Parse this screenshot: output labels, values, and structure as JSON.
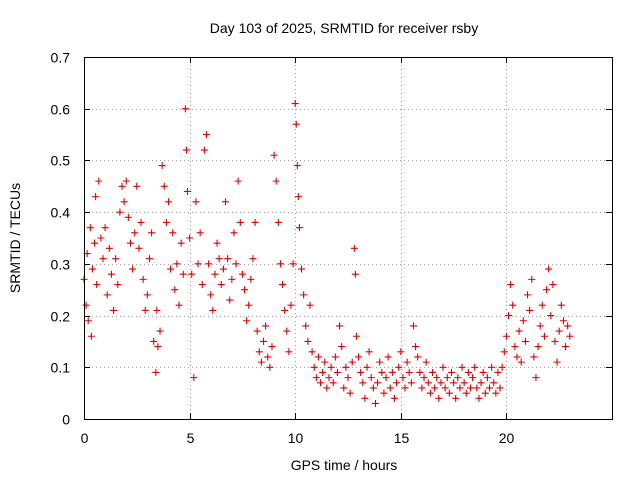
{
  "chart_data": {
    "type": "scatter",
    "title": "Day 103 of 2025, SRMTID for receiver rsby",
    "xlabel": "GPS time / hours",
    "ylabel": "SRMTID / TECUs",
    "xlim": [
      0,
      25
    ],
    "ylim": [
      0,
      0.7
    ],
    "xticks": [
      0,
      5,
      10,
      15,
      20
    ],
    "xtick_labels": [
      "0",
      "5",
      "10",
      "15",
      "20"
    ],
    "yticks": [
      0,
      0.1,
      0.2,
      0.3,
      0.4,
      0.5,
      0.6,
      0.7
    ],
    "ytick_labels": [
      "0",
      "0.1",
      "0.2",
      "0.3",
      "0.4",
      "0.5",
      "0.6",
      "0.7"
    ],
    "grid": true,
    "marker": "plus",
    "color": "#e00000",
    "series": [
      {
        "name": "SRMTID",
        "points": [
          [
            0.0,
            0.27
          ],
          [
            0.1,
            0.22
          ],
          [
            0.15,
            0.32
          ],
          [
            0.2,
            0.19
          ],
          [
            0.3,
            0.37
          ],
          [
            0.35,
            0.16
          ],
          [
            0.4,
            0.29
          ],
          [
            0.5,
            0.34
          ],
          [
            0.55,
            0.43
          ],
          [
            0.6,
            0.26
          ],
          [
            0.7,
            0.46
          ],
          [
            0.8,
            0.35
          ],
          [
            0.9,
            0.31
          ],
          [
            1.0,
            0.37
          ],
          [
            1.1,
            0.24
          ],
          [
            1.2,
            0.33
          ],
          [
            1.3,
            0.28
          ],
          [
            1.4,
            0.21
          ],
          [
            1.5,
            0.31
          ],
          [
            1.6,
            0.26
          ],
          [
            1.7,
            0.4
          ],
          [
            1.8,
            0.45
          ],
          [
            1.9,
            0.42
          ],
          [
            2.0,
            0.46
          ],
          [
            2.1,
            0.39
          ],
          [
            2.2,
            0.34
          ],
          [
            2.3,
            0.29
          ],
          [
            2.4,
            0.36
          ],
          [
            2.5,
            0.45
          ],
          [
            2.6,
            0.33
          ],
          [
            2.7,
            0.38
          ],
          [
            2.8,
            0.27
          ],
          [
            2.9,
            0.21
          ],
          [
            3.0,
            0.24
          ],
          [
            3.1,
            0.31
          ],
          [
            3.2,
            0.36
          ],
          [
            3.3,
            0.15
          ],
          [
            3.4,
            0.09
          ],
          [
            3.45,
            0.21
          ],
          [
            3.5,
            0.14
          ],
          [
            3.6,
            0.17
          ],
          [
            3.7,
            0.49
          ],
          [
            3.8,
            0.45
          ],
          [
            3.9,
            0.38
          ],
          [
            4.0,
            0.42
          ],
          [
            4.1,
            0.29
          ],
          [
            4.2,
            0.36
          ],
          [
            4.3,
            0.25
          ],
          [
            4.4,
            0.3
          ],
          [
            4.5,
            0.22
          ],
          [
            4.6,
            0.34
          ],
          [
            4.7,
            0.28
          ],
          [
            4.8,
            0.6
          ],
          [
            4.85,
            0.52
          ],
          [
            4.9,
            0.44
          ],
          [
            5.0,
            0.35
          ],
          [
            5.1,
            0.28
          ],
          [
            5.2,
            0.08
          ],
          [
            5.3,
            0.42
          ],
          [
            5.4,
            0.3
          ],
          [
            5.5,
            0.36
          ],
          [
            5.6,
            0.26
          ],
          [
            5.7,
            0.52
          ],
          [
            5.8,
            0.55
          ],
          [
            5.9,
            0.3
          ],
          [
            6.0,
            0.24
          ],
          [
            6.1,
            0.21
          ],
          [
            6.2,
            0.28
          ],
          [
            6.3,
            0.34
          ],
          [
            6.4,
            0.31
          ],
          [
            6.5,
            0.26
          ],
          [
            6.6,
            0.29
          ],
          [
            6.7,
            0.42
          ],
          [
            6.8,
            0.31
          ],
          [
            6.9,
            0.23
          ],
          [
            7.0,
            0.27
          ],
          [
            7.1,
            0.36
          ],
          [
            7.2,
            0.3
          ],
          [
            7.3,
            0.46
          ],
          [
            7.4,
            0.38
          ],
          [
            7.5,
            0.28
          ],
          [
            7.6,
            0.25
          ],
          [
            7.7,
            0.19
          ],
          [
            7.8,
            0.22
          ],
          [
            7.9,
            0.27
          ],
          [
            8.0,
            0.31
          ],
          [
            8.1,
            0.38
          ],
          [
            8.2,
            0.17
          ],
          [
            8.3,
            0.13
          ],
          [
            8.4,
            0.11
          ],
          [
            8.5,
            0.15
          ],
          [
            8.6,
            0.18
          ],
          [
            8.7,
            0.12
          ],
          [
            8.8,
            0.1
          ],
          [
            8.9,
            0.14
          ],
          [
            9.0,
            0.51
          ],
          [
            9.1,
            0.46
          ],
          [
            9.2,
            0.38
          ],
          [
            9.3,
            0.3
          ],
          [
            9.4,
            0.26
          ],
          [
            9.5,
            0.21
          ],
          [
            9.6,
            0.17
          ],
          [
            9.7,
            0.13
          ],
          [
            9.8,
            0.22
          ],
          [
            9.9,
            0.3
          ],
          [
            10.0,
            0.61
          ],
          [
            10.05,
            0.57
          ],
          [
            10.1,
            0.49
          ],
          [
            10.15,
            0.43
          ],
          [
            10.2,
            0.37
          ],
          [
            10.3,
            0.29
          ],
          [
            10.4,
            0.24
          ],
          [
            10.5,
            0.18
          ],
          [
            10.6,
            0.15
          ],
          [
            10.7,
            0.22
          ],
          [
            10.8,
            0.13
          ],
          [
            10.9,
            0.1
          ],
          [
            11.0,
            0.08
          ],
          [
            11.1,
            0.12
          ],
          [
            11.2,
            0.07
          ],
          [
            11.3,
            0.09
          ],
          [
            11.4,
            0.11
          ],
          [
            11.5,
            0.06
          ],
          [
            11.6,
            0.08
          ],
          [
            11.7,
            0.1
          ],
          [
            11.8,
            0.07
          ],
          [
            11.9,
            0.12
          ],
          [
            12.0,
            0.09
          ],
          [
            12.1,
            0.18
          ],
          [
            12.2,
            0.14
          ],
          [
            12.3,
            0.06
          ],
          [
            12.4,
            0.1
          ],
          [
            12.5,
            0.08
          ],
          [
            12.6,
            0.05
          ],
          [
            12.7,
            0.11
          ],
          [
            12.8,
            0.33
          ],
          [
            12.85,
            0.28
          ],
          [
            12.9,
            0.16
          ],
          [
            13.0,
            0.12
          ],
          [
            13.1,
            0.09
          ],
          [
            13.2,
            0.07
          ],
          [
            13.3,
            0.04
          ],
          [
            13.4,
            0.1
          ],
          [
            13.5,
            0.13
          ],
          [
            13.6,
            0.08
          ],
          [
            13.7,
            0.06
          ],
          [
            13.8,
            0.03
          ],
          [
            13.9,
            0.07
          ],
          [
            14.0,
            0.11
          ],
          [
            14.1,
            0.09
          ],
          [
            14.2,
            0.05
          ],
          [
            14.3,
            0.08
          ],
          [
            14.4,
            0.12
          ],
          [
            14.5,
            0.06
          ],
          [
            14.6,
            0.09
          ],
          [
            14.7,
            0.04
          ],
          [
            14.8,
            0.07
          ],
          [
            14.9,
            0.1
          ],
          [
            15.0,
            0.13
          ],
          [
            15.1,
            0.08
          ],
          [
            15.2,
            0.06
          ],
          [
            15.3,
            0.11
          ],
          [
            15.4,
            0.09
          ],
          [
            15.5,
            0.07
          ],
          [
            15.6,
            0.18
          ],
          [
            15.7,
            0.14
          ],
          [
            15.8,
            0.12
          ],
          [
            15.9,
            0.09
          ],
          [
            16.0,
            0.06
          ],
          [
            16.1,
            0.08
          ],
          [
            16.2,
            0.11
          ],
          [
            16.3,
            0.07
          ],
          [
            16.4,
            0.05
          ],
          [
            16.5,
            0.09
          ],
          [
            16.6,
            0.06
          ],
          [
            16.7,
            0.08
          ],
          [
            16.8,
            0.04
          ],
          [
            16.9,
            0.07
          ],
          [
            17.0,
            0.1
          ],
          [
            17.1,
            0.06
          ],
          [
            17.2,
            0.08
          ],
          [
            17.3,
            0.05
          ],
          [
            17.4,
            0.09
          ],
          [
            17.5,
            0.07
          ],
          [
            17.6,
            0.04
          ],
          [
            17.7,
            0.08
          ],
          [
            17.8,
            0.06
          ],
          [
            17.9,
            0.1
          ],
          [
            18.0,
            0.07
          ],
          [
            18.1,
            0.05
          ],
          [
            18.2,
            0.09
          ],
          [
            18.3,
            0.06
          ],
          [
            18.4,
            0.08
          ],
          [
            18.5,
            0.1
          ],
          [
            18.6,
            0.06
          ],
          [
            18.7,
            0.04
          ],
          [
            18.8,
            0.07
          ],
          [
            18.9,
            0.09
          ],
          [
            19.0,
            0.05
          ],
          [
            19.1,
            0.08
          ],
          [
            19.2,
            0.06
          ],
          [
            19.3,
            0.1
          ],
          [
            19.4,
            0.07
          ],
          [
            19.5,
            0.05
          ],
          [
            19.6,
            0.09
          ],
          [
            19.7,
            0.06
          ],
          [
            19.8,
            0.1
          ],
          [
            19.9,
            0.13
          ],
          [
            20.0,
            0.16
          ],
          [
            20.1,
            0.2
          ],
          [
            20.2,
            0.26
          ],
          [
            20.3,
            0.22
          ],
          [
            20.4,
            0.14
          ],
          [
            20.5,
            0.12
          ],
          [
            20.6,
            0.17
          ],
          [
            20.7,
            0.11
          ],
          [
            20.8,
            0.19
          ],
          [
            20.9,
            0.15
          ],
          [
            21.0,
            0.24
          ],
          [
            21.1,
            0.21
          ],
          [
            21.2,
            0.27
          ],
          [
            21.3,
            0.12
          ],
          [
            21.4,
            0.08
          ],
          [
            21.5,
            0.14
          ],
          [
            21.6,
            0.18
          ],
          [
            21.7,
            0.22
          ],
          [
            21.8,
            0.16
          ],
          [
            21.9,
            0.25
          ],
          [
            22.0,
            0.29
          ],
          [
            22.1,
            0.2
          ],
          [
            22.2,
            0.26
          ],
          [
            22.3,
            0.15
          ],
          [
            22.4,
            0.11
          ],
          [
            22.5,
            0.17
          ],
          [
            22.6,
            0.22
          ],
          [
            22.7,
            0.19
          ],
          [
            22.8,
            0.14
          ],
          [
            22.9,
            0.18
          ],
          [
            23.0,
            0.16
          ]
        ]
      }
    ]
  }
}
